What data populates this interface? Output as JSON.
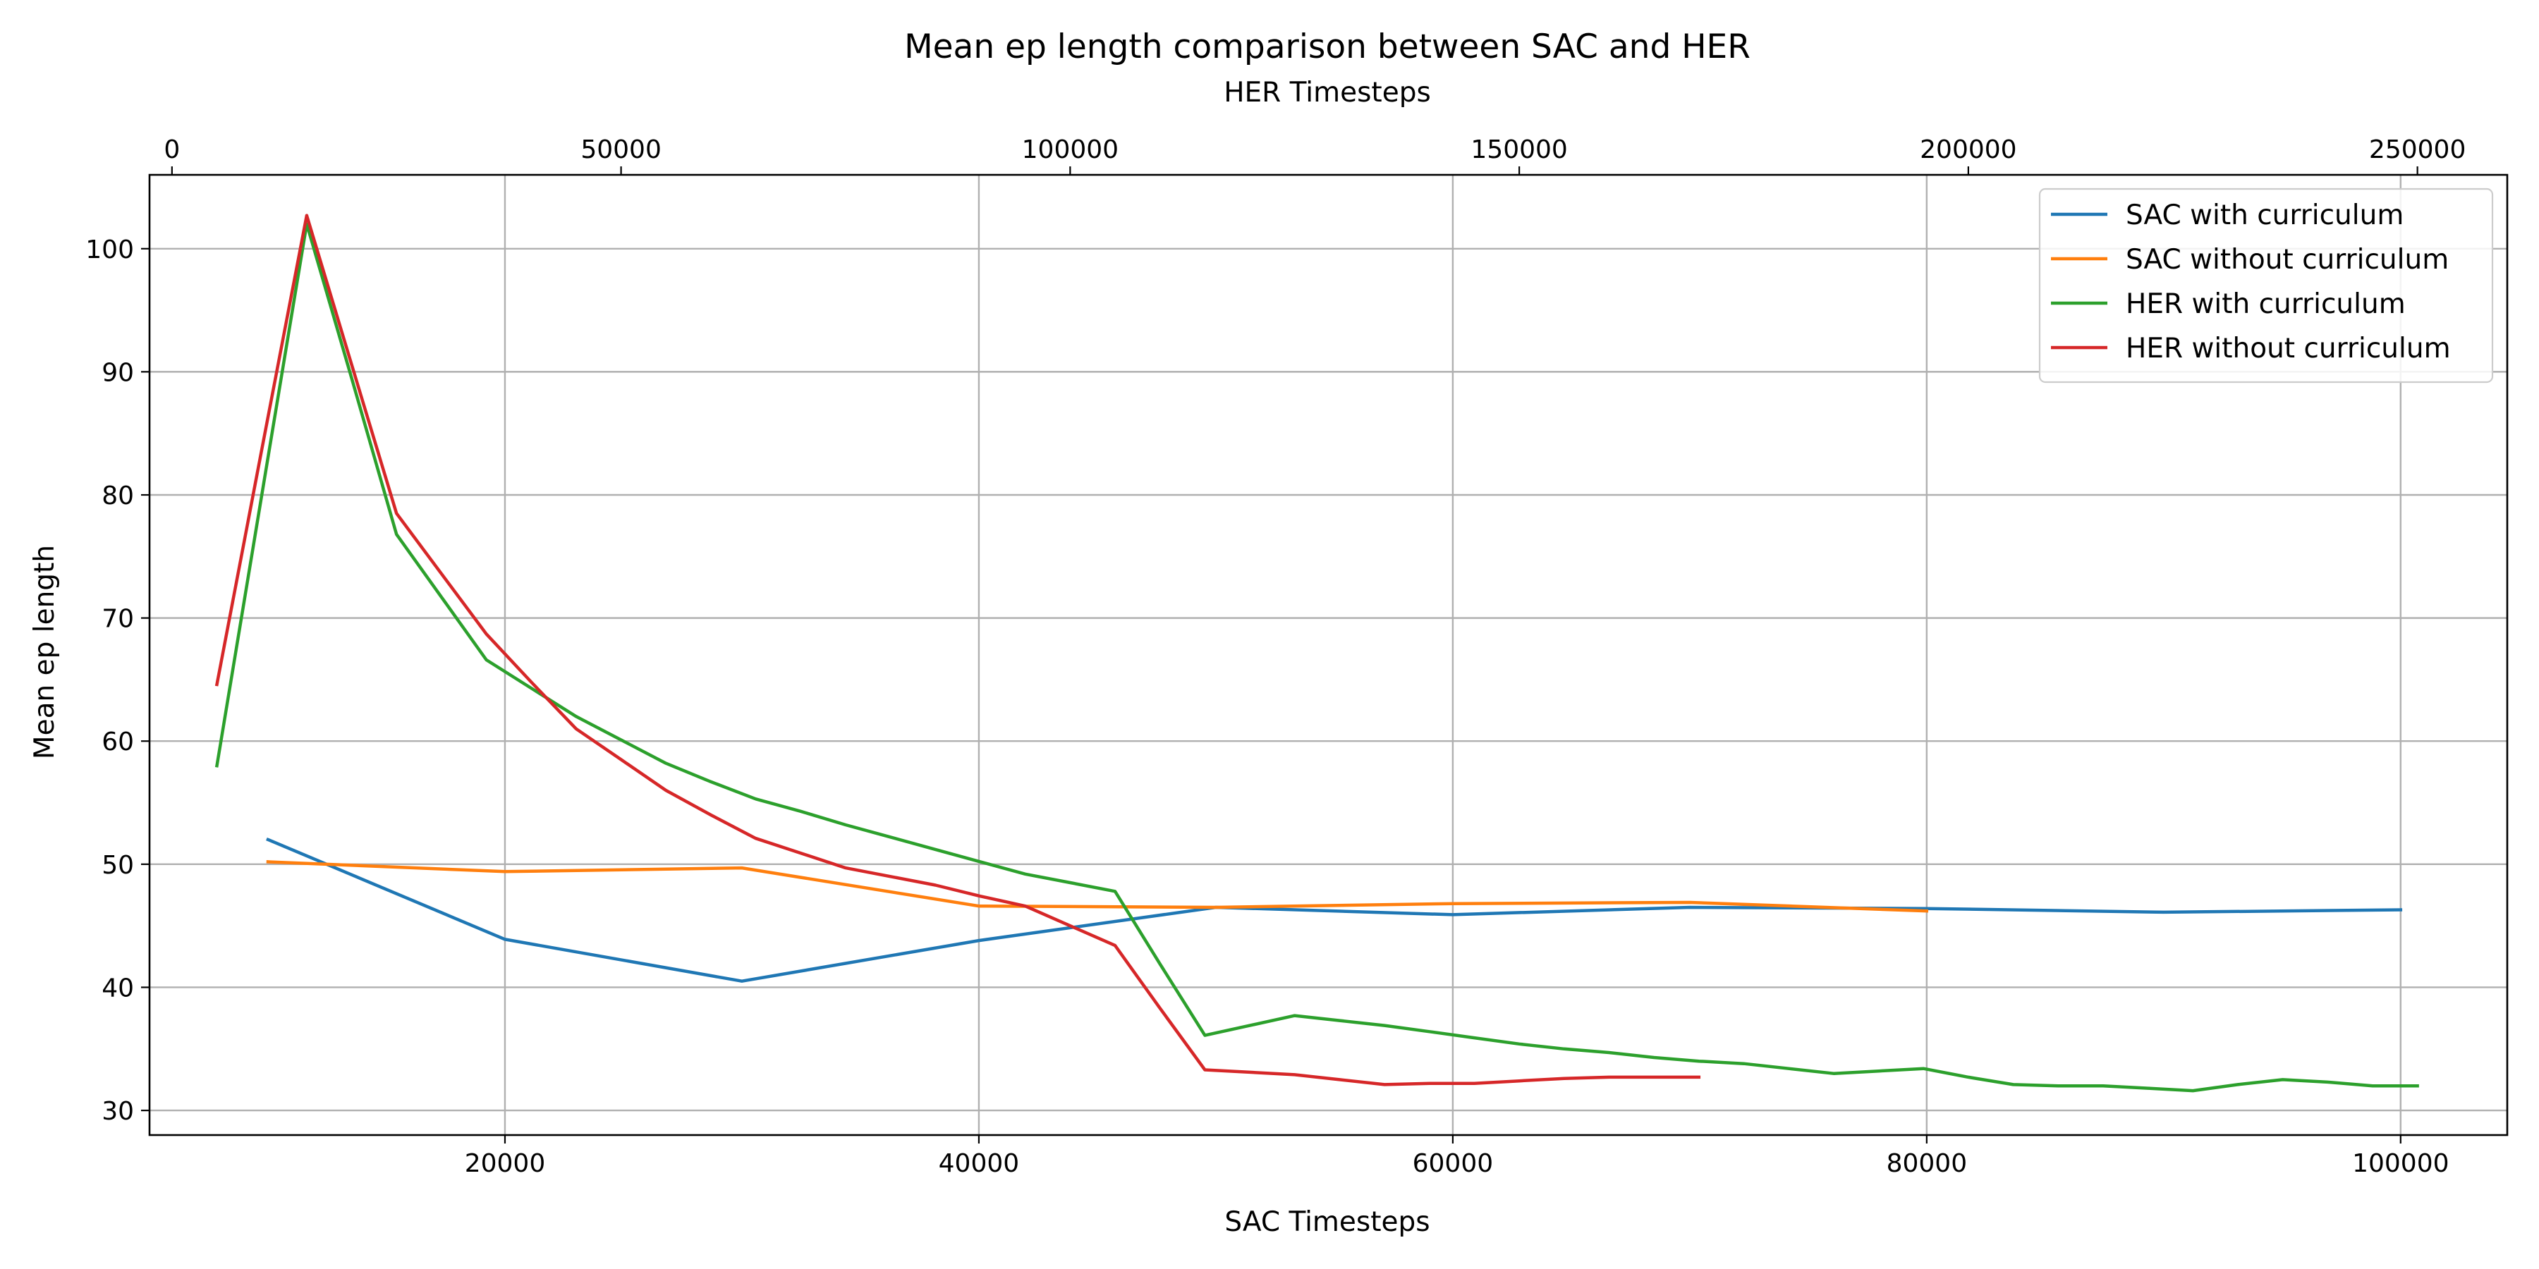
{
  "chart_data": {
    "type": "line",
    "title": "Mean ep length comparison between SAC and HER",
    "xlabel": "SAC Timesteps",
    "x2label": "HER Timesteps",
    "ylabel": "Mean ep length",
    "xlim": [
      5000,
      104500
    ],
    "x2lim": [
      -2500,
      260000
    ],
    "ylim": [
      28,
      106
    ],
    "xticks": [
      20000,
      40000,
      60000,
      80000,
      100000
    ],
    "x2ticks": [
      0,
      50000,
      100000,
      150000,
      200000,
      250000
    ],
    "yticks": [
      30,
      40,
      50,
      60,
      70,
      80,
      90,
      100
    ],
    "grid": true,
    "legend_position": "top-right",
    "series": [
      {
        "name": "SAC with curriculum",
        "axis": "bottom",
        "color": "#1f77b4",
        "x": [
          10000,
          20000,
          30000,
          40000,
          50000,
          60000,
          70000,
          80000,
          90000,
          100000
        ],
        "y": [
          52.0,
          43.9,
          40.5,
          43.8,
          46.5,
          45.9,
          46.5,
          46.4,
          46.1,
          46.3
        ]
      },
      {
        "name": "SAC without curriculum",
        "axis": "bottom",
        "color": "#ff7f0e",
        "x": [
          10000,
          20000,
          30000,
          40000,
          50000,
          60000,
          70000,
          80000
        ],
        "y": [
          50.2,
          49.4,
          49.7,
          46.6,
          46.5,
          46.8,
          46.9,
          46.2
        ]
      },
      {
        "name": "HER with curriculum",
        "axis": "top",
        "color": "#2ca02c",
        "x": [
          5000,
          10000,
          15000,
          20000,
          25000,
          30000,
          35000,
          40000,
          45000,
          50000,
          55000,
          60000,
          65000,
          70000,
          75000,
          80000,
          85000,
          90000,
          95000,
          100000,
          105000,
          110000,
          115000,
          120000,
          125000,
          130000,
          135000,
          140000,
          145000,
          150000,
          155000,
          160000,
          165000,
          170000,
          175000,
          180000,
          185000,
          190000,
          195000,
          200000,
          205000,
          210000,
          215000,
          220000,
          225000,
          230000,
          235000,
          240000,
          245000,
          250000
        ],
        "y": [
          58.0,
          80.0,
          102.0,
          89.5,
          76.8,
          71.7,
          66.6,
          64.3,
          62.0,
          60.1,
          58.2,
          56.7,
          55.3,
          54.3,
          53.2,
          52.2,
          51.2,
          50.2,
          49.2,
          48.5,
          47.8,
          41.9,
          36.1,
          36.9,
          37.7,
          37.3,
          36.9,
          36.4,
          35.9,
          35.4,
          35.0,
          34.7,
          34.3,
          34.0,
          33.8,
          33.4,
          33.0,
          33.2,
          33.4,
          32.7,
          32.1,
          32.0,
          32.0,
          31.8,
          31.6,
          32.1,
          32.5,
          32.3,
          32.0,
          32.0
        ]
      },
      {
        "name": "HER without curriculum",
        "axis": "top",
        "color": "#d62728",
        "x": [
          5000,
          10000,
          15000,
          20000,
          25000,
          30000,
          35000,
          40000,
          45000,
          50000,
          55000,
          60000,
          65000,
          70000,
          75000,
          80000,
          85000,
          90000,
          95000,
          100000,
          105000,
          110000,
          115000,
          120000,
          125000,
          130000,
          135000,
          140000,
          145000,
          150000,
          155000,
          160000,
          165000,
          170000
        ],
        "y": [
          64.6,
          83.7,
          102.7,
          90.6,
          78.5,
          73.6,
          68.7,
          64.8,
          61.0,
          58.5,
          56.0,
          54.0,
          52.1,
          50.9,
          49.7,
          49.0,
          48.3,
          47.4,
          46.6,
          45.0,
          43.4,
          38.3,
          33.3,
          33.1,
          32.9,
          32.5,
          32.1,
          32.2,
          32.2,
          32.4,
          32.6,
          32.7,
          32.7,
          32.7
        ]
      }
    ]
  }
}
